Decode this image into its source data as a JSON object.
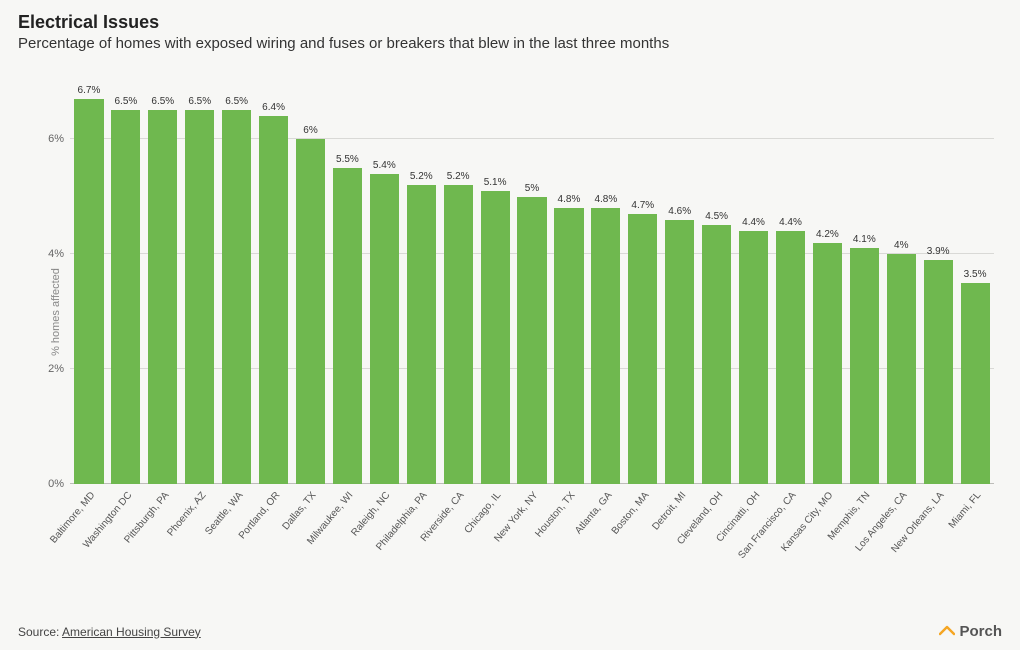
{
  "title": "Electrical Issues",
  "subtitle": "Percentage of homes with exposed wiring and fuses or breakers that blew in the last three months",
  "y_axis_label": "% homes affected",
  "source_prefix": "Source: ",
  "source_link": "American Housing Survey",
  "brand": "Porch",
  "chart": {
    "type": "bar",
    "bar_color": "#6fb84f",
    "background_color": "#f7f7f5",
    "grid_color": "#d9d9d6",
    "axis_color": "#bdbdb9",
    "ylim": [
      0,
      7.2
    ],
    "yticks": [
      {
        "v": 0,
        "label": "0%"
      },
      {
        "v": 2,
        "label": "2%"
      },
      {
        "v": 4,
        "label": "4%"
      },
      {
        "v": 6,
        "label": "6%"
      }
    ],
    "label_fontsize": 10,
    "bars": [
      {
        "city": "Baltimore, MD",
        "value": 6.7,
        "label": "6.7%"
      },
      {
        "city": "Washington DC",
        "value": 6.5,
        "label": "6.5%"
      },
      {
        "city": "Pittsburgh, PA",
        "value": 6.5,
        "label": "6.5%"
      },
      {
        "city": "Phoenix, AZ",
        "value": 6.5,
        "label": "6.5%"
      },
      {
        "city": "Seattle, WA",
        "value": 6.5,
        "label": "6.5%"
      },
      {
        "city": "Portland, OR",
        "value": 6.4,
        "label": "6.4%"
      },
      {
        "city": "Dallas, TX",
        "value": 6.0,
        "label": "6%"
      },
      {
        "city": "Milwaukee, WI",
        "value": 5.5,
        "label": "5.5%"
      },
      {
        "city": "Raleigh, NC",
        "value": 5.4,
        "label": "5.4%"
      },
      {
        "city": "Philadelphia, PA",
        "value": 5.2,
        "label": "5.2%"
      },
      {
        "city": "Riverside, CA",
        "value": 5.2,
        "label": "5.2%"
      },
      {
        "city": "Chicago, IL",
        "value": 5.1,
        "label": "5.1%"
      },
      {
        "city": "New York, NY",
        "value": 5.0,
        "label": "5%"
      },
      {
        "city": "Houston, TX",
        "value": 4.8,
        "label": "4.8%"
      },
      {
        "city": "Atlanta, GA",
        "value": 4.8,
        "label": "4.8%"
      },
      {
        "city": "Boston, MA",
        "value": 4.7,
        "label": "4.7%"
      },
      {
        "city": "Detroit, MI",
        "value": 4.6,
        "label": "4.6%"
      },
      {
        "city": "Cleveland, OH",
        "value": 4.5,
        "label": "4.5%"
      },
      {
        "city": "Cincinatti, OH",
        "value": 4.4,
        "label": "4.4%"
      },
      {
        "city": "San Francisco, CA",
        "value": 4.4,
        "label": "4.4%"
      },
      {
        "city": "Kansas City, MO",
        "value": 4.2,
        "label": "4.2%"
      },
      {
        "city": "Memphis, TN",
        "value": 4.1,
        "label": "4.1%"
      },
      {
        "city": "Los Angeles, CA",
        "value": 4.0,
        "label": "4%"
      },
      {
        "city": "New Orleans, LA",
        "value": 3.9,
        "label": "3.9%"
      },
      {
        "city": "Miami, FL",
        "value": 3.5,
        "label": "3.5%"
      }
    ]
  }
}
